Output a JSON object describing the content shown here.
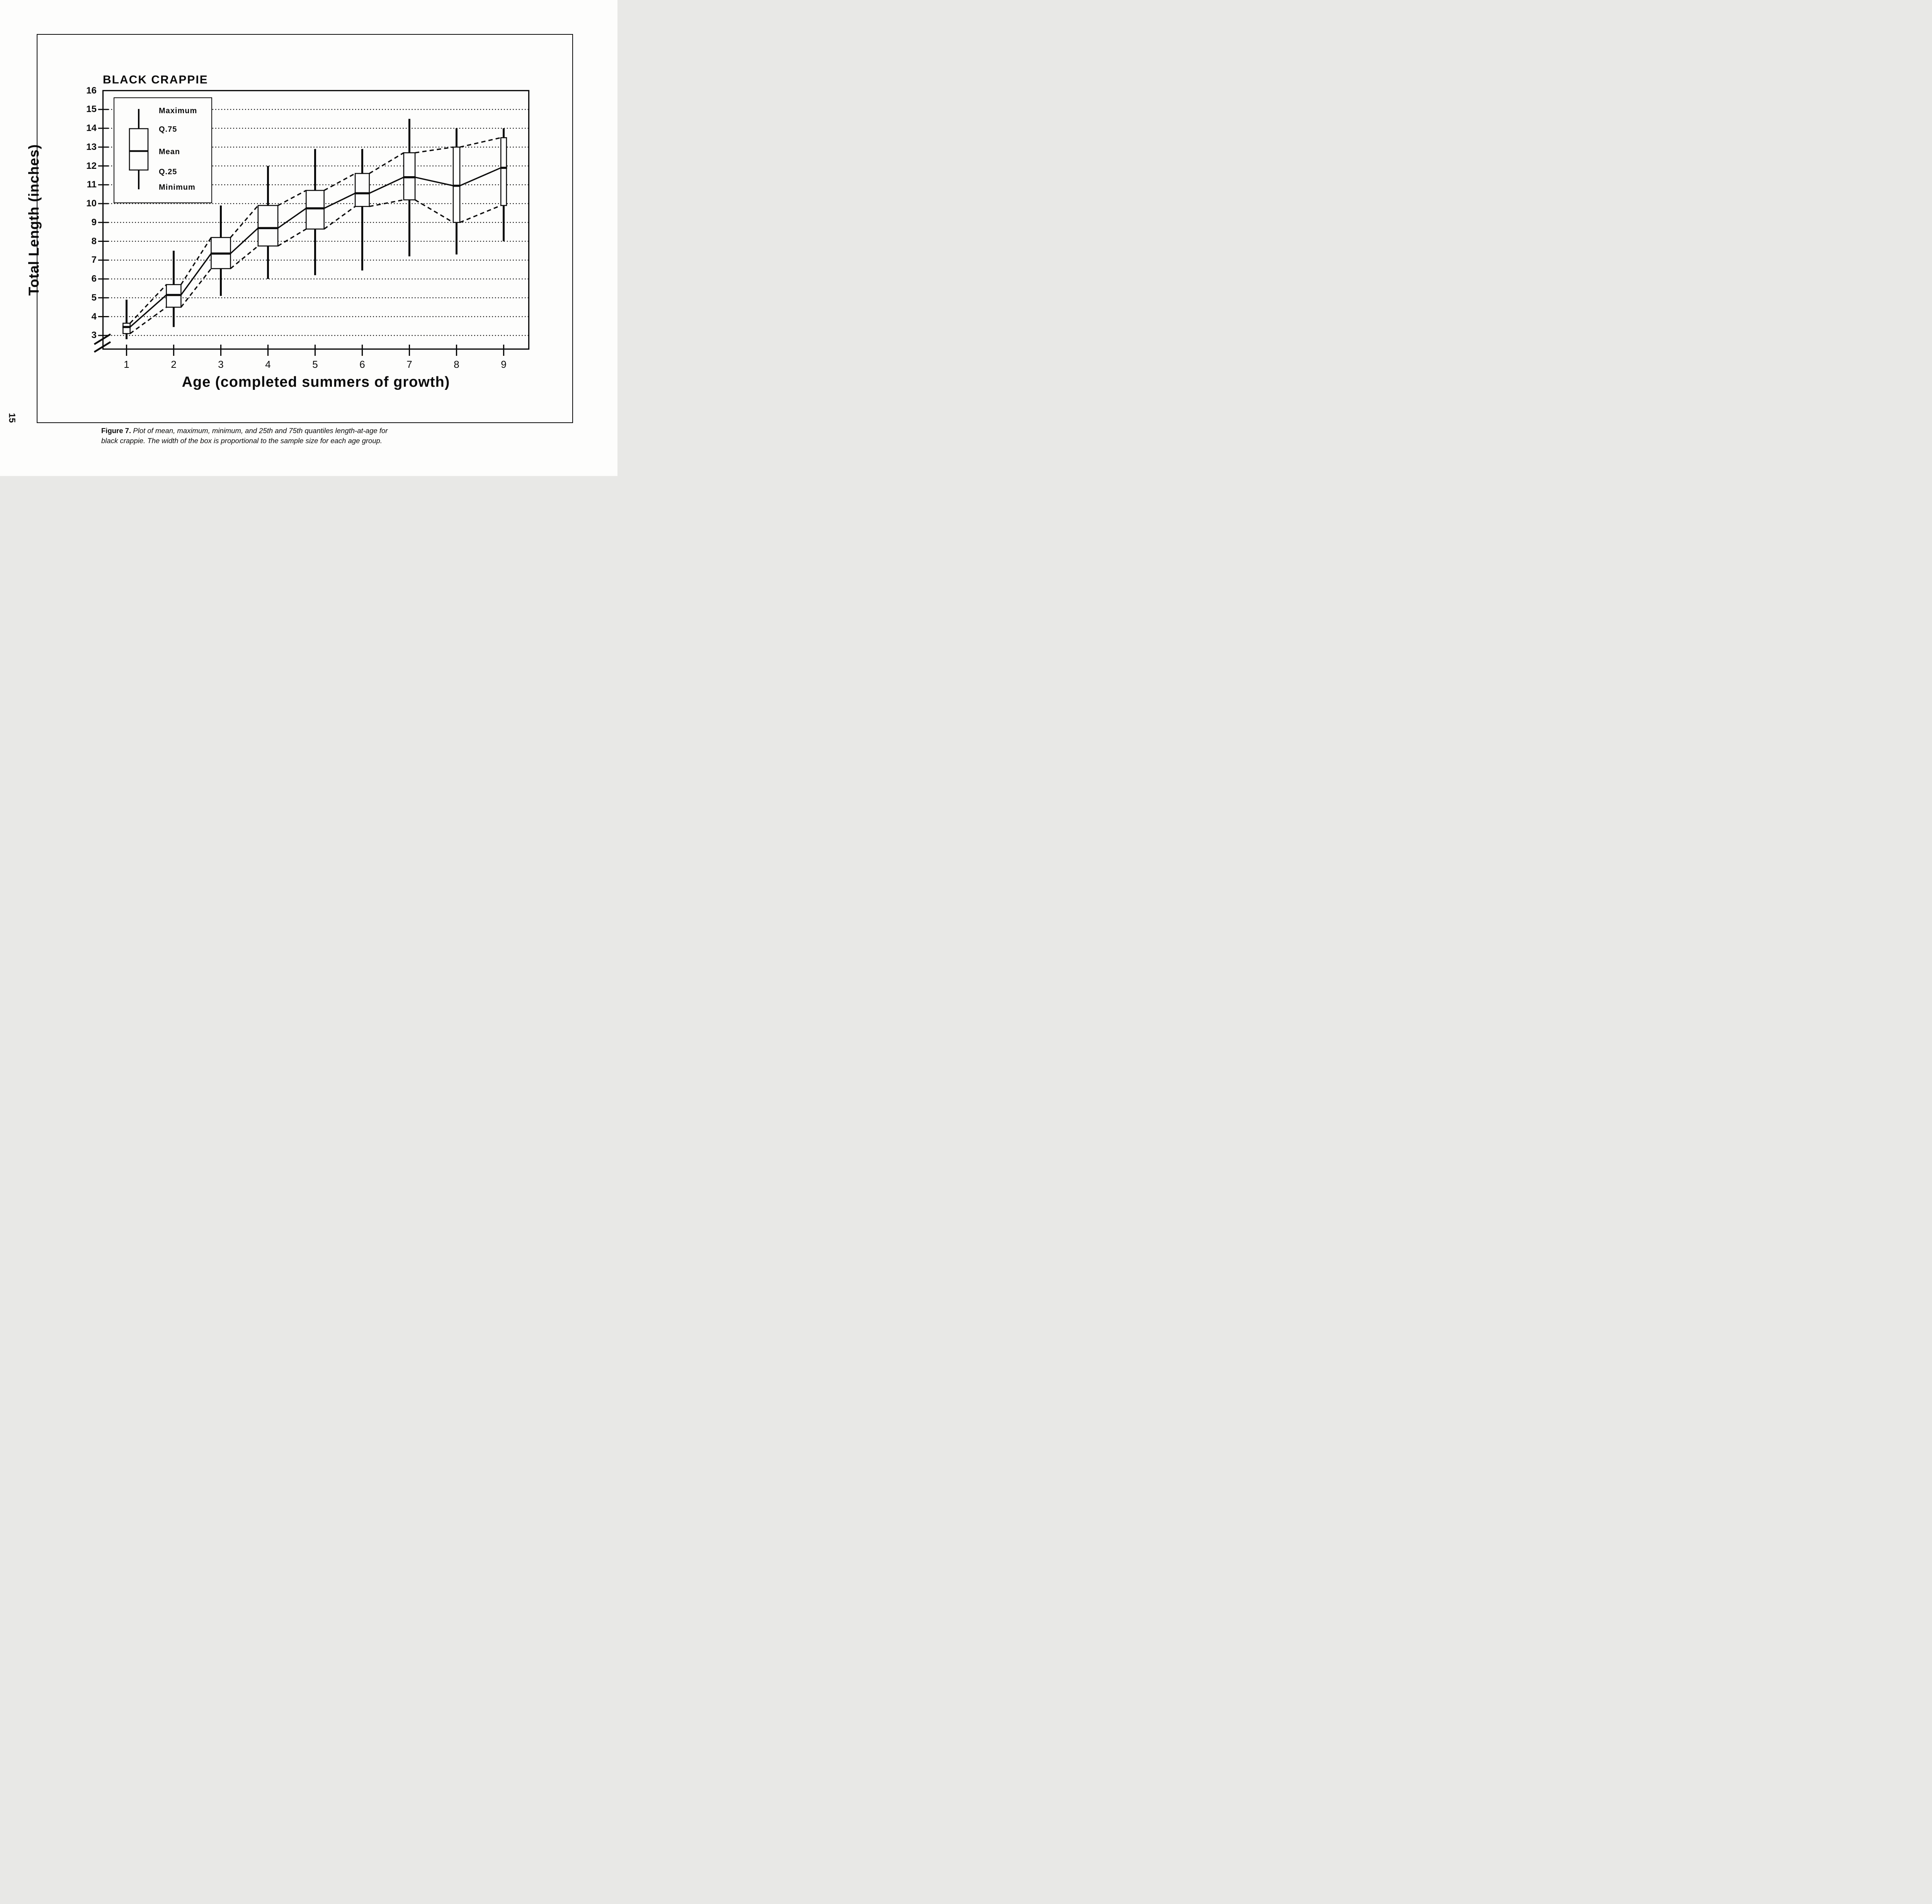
{
  "page": {
    "page_number": "15",
    "paper_color": "#fdfdfc",
    "ink_color": "#0b0b0b"
  },
  "legend": {
    "items": [
      "Maximum",
      "Q.75",
      "Mean",
      "Q.25",
      "Minimum"
    ]
  },
  "caption": {
    "label": "Figure 7.",
    "line1": "Plot of mean, maximum, minimum, and 25th and 75th quantiles length-at-age for",
    "line2": "black crappie.  The width of the box is proportional to the sample size for each age group."
  },
  "chart_data": {
    "type": "boxplot",
    "title": "BLACK CRAPPIE",
    "xlabel": "Age (completed summers of growth)",
    "ylabel": "Total Length  (inches)",
    "x_ticks": [
      1,
      2,
      3,
      4,
      5,
      6,
      7,
      8,
      9
    ],
    "y_ticks": [
      16,
      15,
      14,
      13,
      12,
      11,
      10,
      9,
      8,
      7,
      6,
      5,
      4,
      3
    ],
    "gridline_values": [
      3,
      4,
      5,
      6,
      7,
      8,
      9,
      10,
      11,
      12,
      13,
      14,
      15
    ],
    "grid_style": "dotted",
    "axis_break_below": 3,
    "ylim": [
      2.2,
      16
    ],
    "categories": [
      1,
      2,
      3,
      4,
      5,
      6,
      7,
      8,
      9
    ],
    "series": [
      {
        "name": "Maximum",
        "values": [
          4.9,
          7.5,
          9.9,
          12.0,
          12.9,
          12.9,
          14.5,
          14.0,
          14.0
        ]
      },
      {
        "name": "Q.75",
        "values": [
          3.65,
          5.7,
          8.2,
          9.9,
          10.7,
          11.6,
          12.7,
          13.0,
          13.5
        ]
      },
      {
        "name": "Mean",
        "values": [
          3.45,
          5.15,
          7.35,
          8.7,
          9.75,
          10.55,
          11.4,
          10.95,
          11.9
        ]
      },
      {
        "name": "Q.25",
        "values": [
          3.1,
          4.5,
          6.55,
          7.75,
          8.65,
          9.85,
          10.2,
          9.0,
          9.9
        ]
      },
      {
        "name": "Minimum",
        "values": [
          2.8,
          3.45,
          5.1,
          6.0,
          6.2,
          6.45,
          7.2,
          7.3,
          8.0
        ]
      }
    ],
    "box_width_age_units": [
      0.15,
      0.31,
      0.41,
      0.42,
      0.38,
      0.3,
      0.24,
      0.14,
      0.12
    ],
    "connectors": {
      "mean_line": "solid",
      "q75_line": "dashed",
      "q25_line": "dashed"
    },
    "legend_position": "upper-left-inside"
  }
}
